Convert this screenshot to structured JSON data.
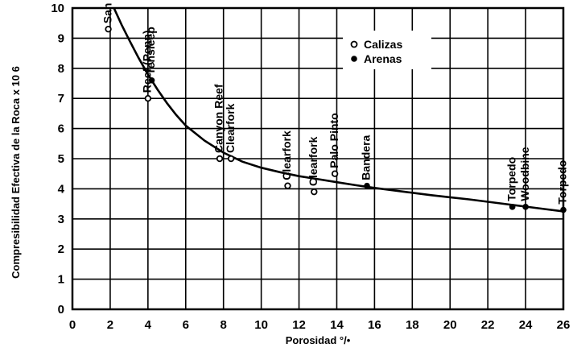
{
  "chart_data": {
    "type": "scatter",
    "xlabel": "Porosidad °/•",
    "ylabel": "Compresibilidad Efectiva de la Roca x 10 6",
    "xlim": [
      0,
      26
    ],
    "ylim": [
      0,
      10
    ],
    "x_ticks": [
      "0",
      "2",
      "4",
      "6",
      "8",
      "10",
      "12",
      "14",
      "16",
      "18",
      "20",
      "22",
      "24",
      "26"
    ],
    "y_ticks": [
      "0",
      "1",
      "2",
      "3",
      "4",
      "5",
      "6",
      "7",
      "8",
      "9",
      "10"
    ],
    "grid": true,
    "legend_position": "top-center",
    "legend": [
      {
        "label": "Calizas",
        "marker": "open-circle"
      },
      {
        "label": "Arenas",
        "marker": "filled-circle"
      }
    ],
    "series": [
      {
        "name": "Calizas",
        "marker": "open-circle",
        "points": [
          {
            "x": 1.9,
            "y": 9.3,
            "label": "San Andres"
          },
          {
            "x": 4.0,
            "y": 7.0,
            "label": "Reef (Penn)"
          },
          {
            "x": 7.8,
            "y": 5.0,
            "label": "Canyon Reef"
          },
          {
            "x": 8.4,
            "y": 5.0,
            "label": "Clearfork"
          },
          {
            "x": 11.4,
            "y": 4.1,
            "label": "Clearfork"
          },
          {
            "x": 12.8,
            "y": 3.9,
            "label": "Clearfork"
          },
          {
            "x": 13.9,
            "y": 4.5,
            "label": "Palo Pinto"
          }
        ]
      },
      {
        "name": "Arenas",
        "marker": "filled-circle",
        "points": [
          {
            "x": 4.2,
            "y": 7.6,
            "label": "Tensleep"
          },
          {
            "x": 15.6,
            "y": 4.1,
            "label": "Bandera"
          },
          {
            "x": 23.3,
            "y": 3.4,
            "label": "Torpedo"
          },
          {
            "x": 24.0,
            "y": 3.4,
            "label": "Woodbine"
          },
          {
            "x": 26.0,
            "y": 3.3,
            "label": "Torpedo"
          }
        ]
      }
    ],
    "curve": {
      "x": [
        2.2,
        2.6,
        3,
        3.5,
        4,
        4.5,
        5,
        5.5,
        6,
        7,
        8,
        9,
        10,
        11,
        12,
        13,
        14,
        15,
        16,
        17,
        18,
        19,
        20,
        21,
        22,
        23,
        24,
        25,
        26
      ],
      "y": [
        10.0,
        9.45,
        8.95,
        8.35,
        7.8,
        7.3,
        6.85,
        6.45,
        6.1,
        5.6,
        5.2,
        4.9,
        4.7,
        4.55,
        4.42,
        4.32,
        4.22,
        4.12,
        4.03,
        3.95,
        3.87,
        3.79,
        3.72,
        3.65,
        3.57,
        3.49,
        3.41,
        3.33,
        3.25
      ]
    }
  }
}
